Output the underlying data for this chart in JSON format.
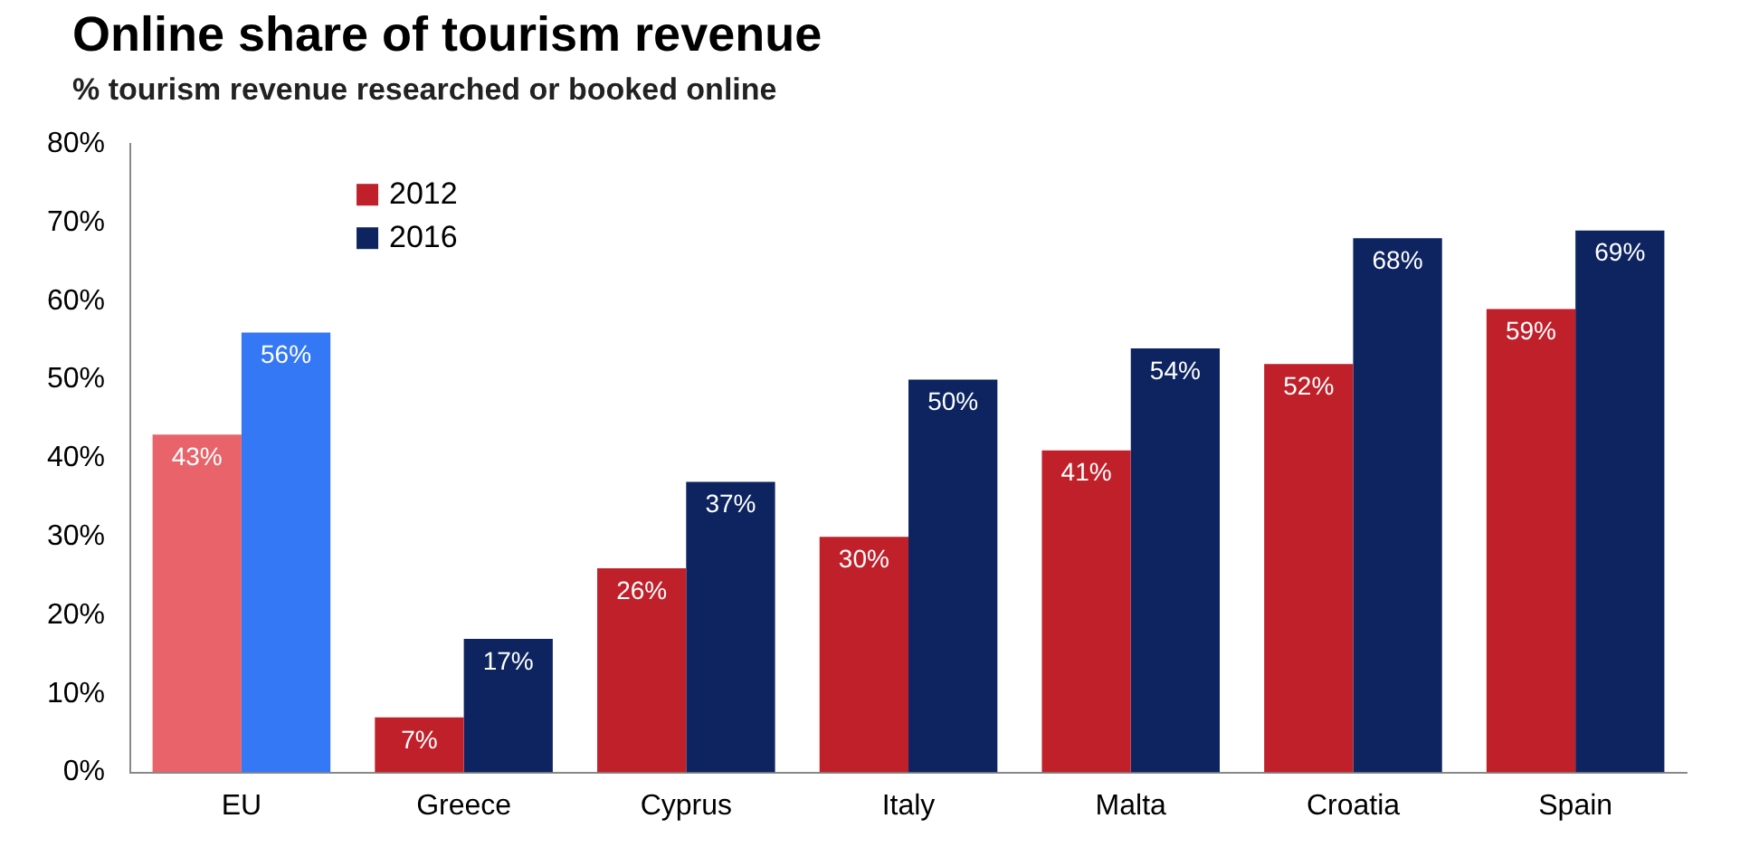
{
  "chart_data": {
    "type": "bar",
    "title": "Online share of tourism revenue",
    "subtitle": "% tourism revenue researched or booked online",
    "categories": [
      "EU",
      "Greece",
      "Cyprus",
      "Italy",
      "Malta",
      "Croatia",
      "Spain"
    ],
    "series": [
      {
        "name": "2012",
        "color": "#c0202a",
        "colors": [
          "#e8636a",
          "#c0202a",
          "#c0202a",
          "#c0202a",
          "#c0202a",
          "#c0202a",
          "#c0202a"
        ],
        "values": [
          43,
          7,
          26,
          30,
          41,
          52,
          59
        ],
        "value_labels": [
          "43%",
          "7%",
          "26%",
          "30%",
          "41%",
          "52%",
          "59%"
        ]
      },
      {
        "name": "2016",
        "color": "#0d2460",
        "colors": [
          "#3478f6",
          "#0d2460",
          "#0d2460",
          "#0d2460",
          "#0d2460",
          "#0d2460",
          "#0d2460"
        ],
        "values": [
          56,
          17,
          37,
          50,
          54,
          68,
          69
        ],
        "value_labels": [
          "56%",
          "17%",
          "37%",
          "50%",
          "54%",
          "68%",
          "69%"
        ]
      }
    ],
    "ylim": [
      0,
      80
    ],
    "yticks": [
      {
        "value": 0,
        "label": "0%"
      },
      {
        "value": 10,
        "label": "10%"
      },
      {
        "value": 20,
        "label": "20%"
      },
      {
        "value": 30,
        "label": "30%"
      },
      {
        "value": 40,
        "label": "40%"
      },
      {
        "value": 50,
        "label": "50%"
      },
      {
        "value": 60,
        "label": "60%"
      },
      {
        "value": 70,
        "label": "70%"
      },
      {
        "value": 80,
        "label": "80%"
      }
    ],
    "grid": false,
    "legend": "top left"
  }
}
